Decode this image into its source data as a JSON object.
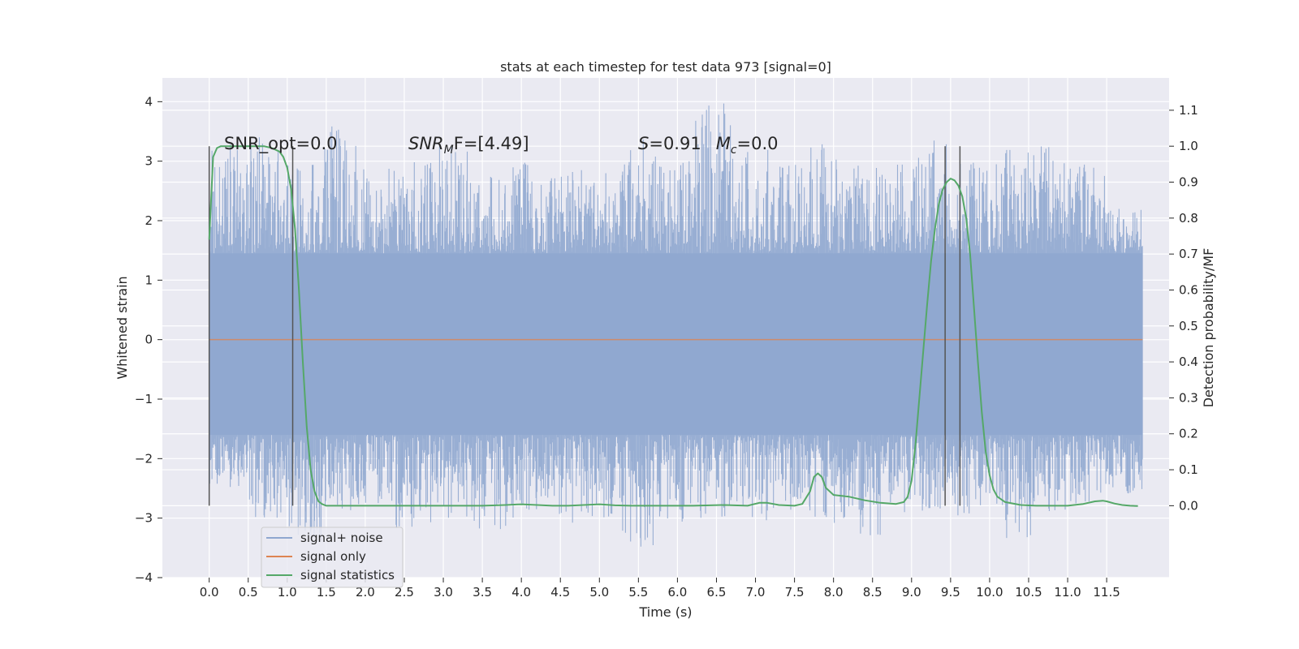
{
  "chart_data": {
    "type": "line",
    "title": "stats at each timestep for test data 973 [signal=0]",
    "xlabel": "Time (s)",
    "ylabel_left": "Whitened strain",
    "ylabel_right": "Detection probability/MF",
    "xlim": [
      -0.6,
      12.3
    ],
    "ylim_left": [
      -4.0,
      4.4
    ],
    "ylim_right": [
      -0.2,
      1.19
    ],
    "xticks": [
      0.0,
      0.5,
      1.0,
      1.5,
      2.0,
      2.5,
      3.0,
      3.5,
      4.0,
      4.5,
      5.0,
      5.5,
      6.0,
      6.5,
      7.0,
      7.5,
      8.0,
      8.5,
      9.0,
      9.5,
      10.0,
      10.5,
      11.0,
      11.5
    ],
    "xtick_labels": [
      "0.0",
      "0.5",
      "1.0",
      "1.5",
      "2.0",
      "2.5",
      "3.0",
      "3.5",
      "4.0",
      "4.5",
      "5.0",
      "5.5",
      "6.0",
      "6.5",
      "7.0",
      "7.5",
      "8.0",
      "8.5",
      "9.0",
      "9.5",
      "10.0",
      "10.5",
      "11.0",
      "11.5"
    ],
    "yticks_left": [
      4,
      3,
      2,
      1,
      0,
      -1,
      -2,
      -3,
      -4
    ],
    "ytick_labels_left": [
      "4",
      "3",
      "2",
      "1",
      "0",
      "−1",
      "−2",
      "−3",
      "−4"
    ],
    "yticks_right": [
      1.1,
      1.0,
      0.9,
      0.8,
      0.7,
      0.6,
      0.5,
      0.4,
      0.3,
      0.2,
      0.1,
      0.0
    ],
    "ytick_labels_right": [
      "1.1",
      "1.0",
      "0.9",
      "0.8",
      "0.7",
      "0.6",
      "0.5",
      "0.4",
      "0.3",
      "0.2",
      "0.1",
      "0.0"
    ],
    "grid": true,
    "legend_position": "lower-left",
    "legend": [
      "signal+ noise",
      "signal only",
      "signal statistics"
    ],
    "colors": {
      "signal_noise": "#8fa7cf",
      "signal_only": "#dd8452",
      "statistics": "#55a868",
      "vlines": "#555555",
      "axes_bg": "#eaeaf2",
      "grid": "#ffffff"
    },
    "signal_noise_envelope": {
      "x_range": [
        0.0,
        11.96
      ],
      "core_band": [
        -1.6,
        1.45
      ],
      "spike_max": [
        3.3,
        3.4,
        3.0,
        3.6,
        2.9,
        3.0,
        3.3,
        2.8,
        3.0,
        2.9,
        2.8,
        3.4,
        3.0,
        4.1,
        3.2,
        3.0,
        3.3,
        3.0,
        3.0,
        3.4,
        3.0,
        3.2,
        3.3,
        3.1,
        2.2
      ],
      "spike_min": [
        -2.5,
        -3.1,
        -3.4,
        -2.9,
        -2.8,
        -3.2,
        -3.0,
        -3.2,
        -3.0,
        -3.2,
        -3.0,
        -3.5,
        -3.1,
        -3.0,
        -3.1,
        -2.9,
        -3.1,
        -3.3,
        -2.9,
        -2.9,
        -3.0,
        -3.4,
        -2.9,
        -2.8,
        -2.6
      ]
    },
    "signal_only": {
      "x": [
        0.0,
        11.96
      ],
      "y": [
        0.0,
        0.0
      ]
    },
    "signal_statistics": {
      "axis": "right",
      "x": [
        0.0,
        0.05,
        0.1,
        0.15,
        0.2,
        0.3,
        0.4,
        0.5,
        0.6,
        0.7,
        0.8,
        0.9,
        0.95,
        1.0,
        1.05,
        1.1,
        1.15,
        1.2,
        1.25,
        1.3,
        1.35,
        1.4,
        1.45,
        1.5,
        1.6,
        1.8,
        2.0,
        2.5,
        3.0,
        3.5,
        3.8,
        4.0,
        4.2,
        4.4,
        4.6,
        4.8,
        5.0,
        5.2,
        5.4,
        5.8,
        6.2,
        6.6,
        6.9,
        7.05,
        7.15,
        7.3,
        7.5,
        7.6,
        7.7,
        7.75,
        7.8,
        7.85,
        7.9,
        8.0,
        8.2,
        8.4,
        8.6,
        8.8,
        8.9,
        8.95,
        9.0,
        9.05,
        9.1,
        9.15,
        9.2,
        9.25,
        9.3,
        9.35,
        9.4,
        9.45,
        9.5,
        9.55,
        9.6,
        9.65,
        9.7,
        9.75,
        9.8,
        9.85,
        9.9,
        9.95,
        10.0,
        10.05,
        10.1,
        10.2,
        10.4,
        10.6,
        10.8,
        11.0,
        11.2,
        11.35,
        11.45,
        11.5,
        11.6,
        11.7,
        11.8,
        11.9
      ],
      "y": [
        0.74,
        0.97,
        0.995,
        1.0,
        1.0,
        1.0,
        1.0,
        1.0,
        1.0,
        1.0,
        0.995,
        0.985,
        0.97,
        0.94,
        0.88,
        0.77,
        0.6,
        0.4,
        0.22,
        0.1,
        0.04,
        0.012,
        0.004,
        0.0,
        0.0,
        0.0,
        0.0,
        0.0,
        0.0,
        0.0,
        0.002,
        0.004,
        0.002,
        0.0,
        0.0,
        0.002,
        0.004,
        0.001,
        0.0,
        0.0,
        0.0,
        0.002,
        0.0,
        0.008,
        0.008,
        0.002,
        0.0,
        0.005,
        0.04,
        0.08,
        0.09,
        0.08,
        0.05,
        0.03,
        0.025,
        0.015,
        0.008,
        0.005,
        0.01,
        0.025,
        0.07,
        0.17,
        0.3,
        0.43,
        0.56,
        0.68,
        0.77,
        0.84,
        0.88,
        0.9,
        0.91,
        0.905,
        0.89,
        0.86,
        0.8,
        0.7,
        0.55,
        0.4,
        0.26,
        0.15,
        0.085,
        0.045,
        0.025,
        0.01,
        0.002,
        0.0,
        0.0,
        0.0,
        0.005,
        0.012,
        0.014,
        0.012,
        0.006,
        0.002,
        0.0,
        -0.001
      ]
    },
    "vertical_lines_x": [
      0.0,
      1.07,
      9.43,
      9.62
    ],
    "annotations": [
      {
        "text": "SNR_opt=0.0",
        "x": 0.2,
        "y": 3.3
      },
      {
        "text_main": "SNR",
        "text_sub": "M",
        "text_rest": "F=[4.49]",
        "x": 2.6,
        "y": 3.3
      },
      {
        "text_main": "S",
        "text_rest": "=0.91",
        "text_main2": "M",
        "text_sub2": "c",
        "text_rest2": "=0.0",
        "x": 5.6,
        "y": 3.3
      }
    ]
  }
}
